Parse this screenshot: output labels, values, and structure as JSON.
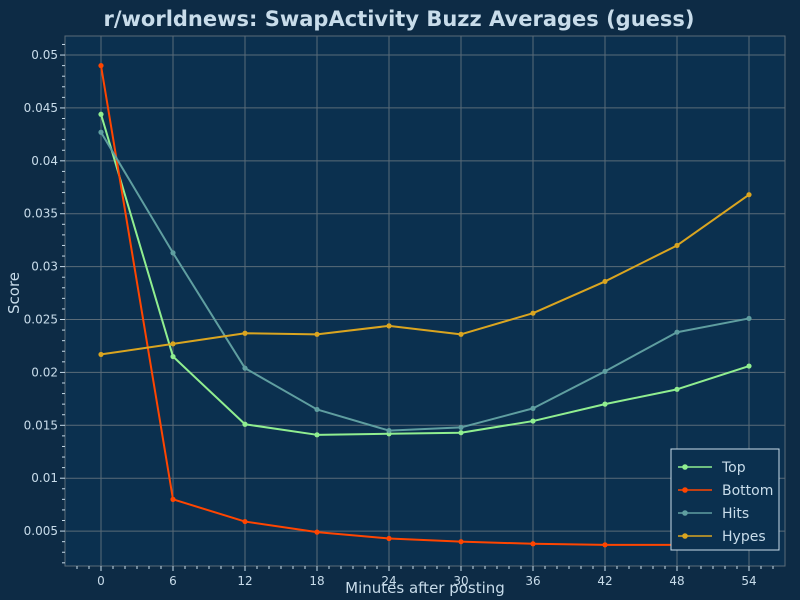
{
  "chart_data": {
    "type": "line",
    "title": "r/worldnews: SwapActivity Buzz Averages (guess)",
    "xlabel": "Minutes after posting",
    "ylabel": "Score",
    "x": [
      0,
      6,
      12,
      18,
      24,
      30,
      36,
      42,
      48,
      54
    ],
    "xticks": [
      "0",
      "6",
      "12",
      "18",
      "24",
      "30",
      "36",
      "42",
      "48",
      "54"
    ],
    "yticks": [
      "0.005",
      "0.01",
      "0.015",
      "0.02",
      "0.025",
      "0.03",
      "0.035",
      "0.04",
      "0.045",
      "0.05"
    ],
    "xlim": [
      -3,
      57
    ],
    "ylim": [
      0.0017,
      0.0518
    ],
    "grid": true,
    "legend_position": "bottom-right",
    "series": [
      {
        "name": "Top",
        "color": "#90ee90",
        "values": [
          0.0444,
          0.0215,
          0.0151,
          0.0141,
          0.0142,
          0.0143,
          0.0154,
          0.017,
          0.0184,
          0.0206
        ]
      },
      {
        "name": "Bottom",
        "color": "#ff4500",
        "values": [
          0.049,
          0.008,
          0.0059,
          0.0049,
          0.0043,
          0.004,
          0.0038,
          0.0037,
          0.0037,
          0.0037
        ]
      },
      {
        "name": "Hits",
        "color": "#5f9ea0",
        "values": [
          0.0427,
          0.0313,
          0.0204,
          0.0165,
          0.0145,
          0.0148,
          0.0166,
          0.0201,
          0.0238,
          0.0251
        ]
      },
      {
        "name": "Hypes",
        "color": "#daa520",
        "values": [
          0.0217,
          0.0227,
          0.0237,
          0.0236,
          0.0244,
          0.0236,
          0.0256,
          0.0286,
          0.032,
          0.0368
        ]
      }
    ]
  },
  "colors": {
    "background": "#0d2b45",
    "plot_background": "#0b304f",
    "grid": "#5a6b78",
    "text": "#c8dcea"
  }
}
